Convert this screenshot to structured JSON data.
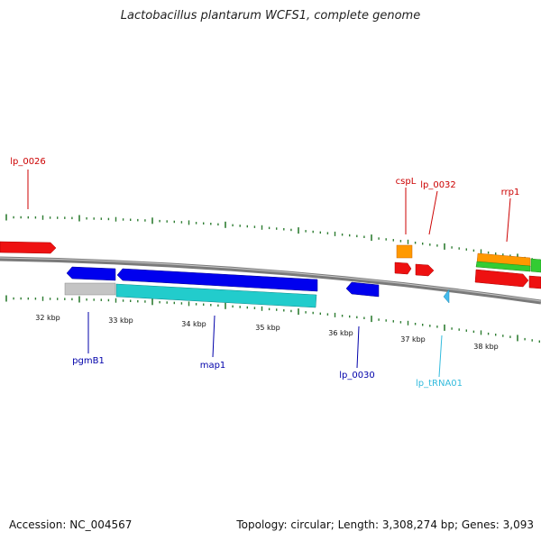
{
  "title": "Lactobacillus plantarum WCFS1, complete genome",
  "footer": {
    "accession": "Accession: NC_004567",
    "summary": "Topology: circular; Length: 3,308,274 bp; Genes: 3,093"
  },
  "colors": {
    "backbone": "#808080",
    "tick": "#2e7d32",
    "label_red": "#cc0000",
    "label_blue": "#0000aa",
    "label_cyan": "#33bbdd"
  },
  "scale_labels": [
    "32 kbp",
    "33 kbp",
    "34 kbp",
    "35 kbp",
    "36 kbp",
    "37 kbp",
    "38 kbp"
  ],
  "gene_labels": {
    "lp_0026": "lp_0026",
    "cspL": "cspL",
    "lp_0032": "lp_0032",
    "rrp1": "rrp1",
    "pgmB1": "pgmB1",
    "map1": "map1",
    "lp_0030": "lp_0030",
    "lp_tRNA01": "lp_tRNA01"
  }
}
